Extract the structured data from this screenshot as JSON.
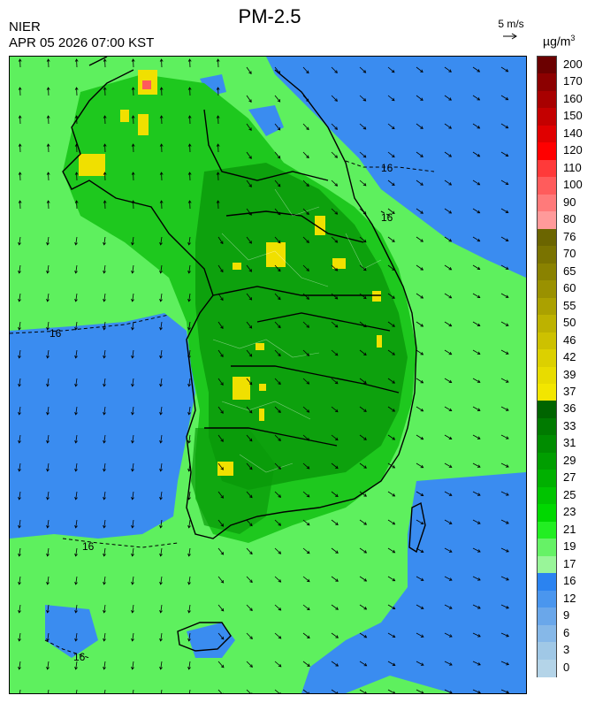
{
  "header": {
    "agency": "NIER",
    "timestamp": "APR 05 2026 07:00 KST",
    "title": "PM-2.5",
    "wind_reference": "5 m/s",
    "unit_base": "µg/m",
    "unit_exp": "3"
  },
  "legend": {
    "levels": [
      {
        "label": "200",
        "color": "#6b0000"
      },
      {
        "label": "170",
        "color": "#8c0000"
      },
      {
        "label": "160",
        "color": "#a80000"
      },
      {
        "label": "150",
        "color": "#c40000"
      },
      {
        "label": "140",
        "color": "#e00000"
      },
      {
        "label": "120",
        "color": "#ff0000"
      },
      {
        "label": "110",
        "color": "#ff3a3a"
      },
      {
        "label": "100",
        "color": "#ff5c5c"
      },
      {
        "label": "90",
        "color": "#ff7a7a"
      },
      {
        "label": "80",
        "color": "#ff9a9a"
      },
      {
        "label": "76",
        "color": "#6b6500"
      },
      {
        "label": "70",
        "color": "#7a7300"
      },
      {
        "label": "65",
        "color": "#8a8200"
      },
      {
        "label": "60",
        "color": "#9a9100"
      },
      {
        "label": "55",
        "color": "#aba100"
      },
      {
        "label": "50",
        "color": "#bdb200"
      },
      {
        "label": "46",
        "color": "#cdc100"
      },
      {
        "label": "42",
        "color": "#dcd000"
      },
      {
        "label": "39",
        "color": "#e8dc00"
      },
      {
        "label": "37",
        "color": "#f2e600"
      },
      {
        "label": "36",
        "color": "#006400"
      },
      {
        "label": "33",
        "color": "#007a00"
      },
      {
        "label": "31",
        "color": "#008c00"
      },
      {
        "label": "29",
        "color": "#009e00"
      },
      {
        "label": "27",
        "color": "#00b000"
      },
      {
        "label": "25",
        "color": "#00c400"
      },
      {
        "label": "23",
        "color": "#00d800"
      },
      {
        "label": "21",
        "color": "#22ee22"
      },
      {
        "label": "19",
        "color": "#66f266"
      },
      {
        "label": "17",
        "color": "#99f599"
      },
      {
        "label": "16",
        "color": "#2b83f0"
      },
      {
        "label": "12",
        "color": "#4a96ee"
      },
      {
        "label": "9",
        "color": "#6aa7ea"
      },
      {
        "label": "6",
        "color": "#86b8e8"
      },
      {
        "label": "3",
        "color": "#a0c8e6"
      },
      {
        "label": "0",
        "color": "#b4d4e8"
      }
    ]
  },
  "contour_labels": [
    "16",
    "16",
    "16",
    "16",
    "16"
  ],
  "colors": {
    "low": "#3a8cf0",
    "light_green": "#5ef05e",
    "mid_green": "#1ec81e",
    "dark_green": "#0a9a0a",
    "yellow": "#f0e000",
    "red": "#ff5a5a"
  }
}
